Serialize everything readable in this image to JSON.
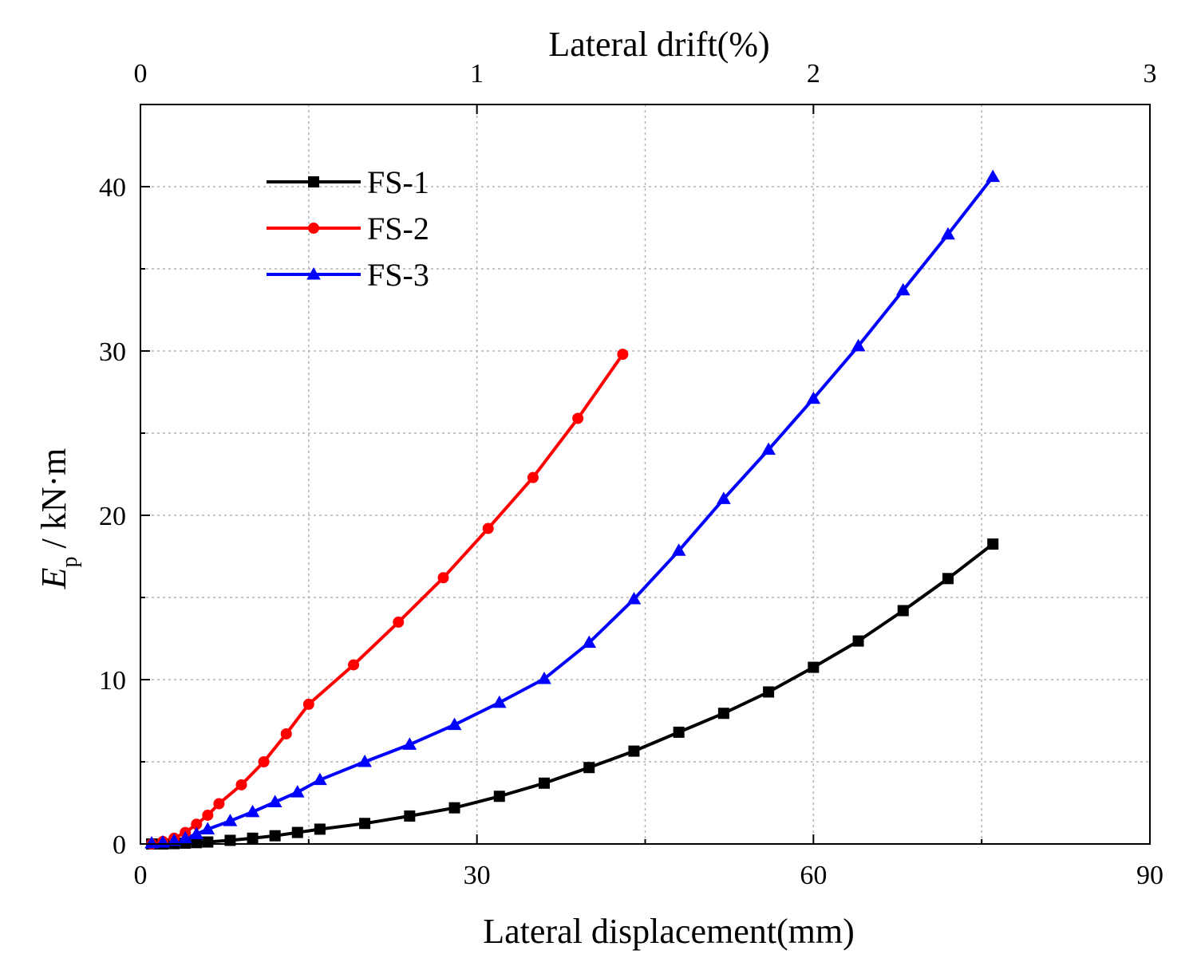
{
  "chart_data": {
    "type": "line",
    "xlabel": "Lateral displacement(mm)",
    "x2label": "Lateral drift(%)",
    "ylabel_main": "E",
    "ylabel_sub": "p",
    "ylabel_unit": "/ kN·m",
    "xlim": [
      0,
      90
    ],
    "ylim": [
      0,
      45
    ],
    "x2lim": [
      0,
      3
    ],
    "xticks": [
      0,
      30,
      60,
      90
    ],
    "x2ticks": [
      0,
      1,
      2,
      3
    ],
    "yticks": [
      0,
      10,
      20,
      30,
      40
    ],
    "xticks_minor": [
      15,
      45,
      75
    ],
    "yticks_minor": [
      5,
      15,
      25,
      35
    ],
    "grid": true,
    "legend_position": "top-left",
    "series": [
      {
        "name": "FS-1",
        "color": "#000000",
        "marker": "square",
        "x": [
          1,
          2,
          3,
          4,
          5,
          6,
          8,
          10,
          12,
          14,
          16,
          20,
          24,
          28,
          32,
          36,
          40,
          44,
          48,
          52,
          56,
          60,
          64,
          68,
          72,
          76
        ],
        "y": [
          0,
          0,
          0.02,
          0.05,
          0.08,
          0.12,
          0.22,
          0.35,
          0.5,
          0.7,
          0.9,
          1.25,
          1.7,
          2.2,
          2.9,
          3.7,
          4.65,
          5.65,
          6.8,
          7.95,
          9.25,
          10.75,
          12.35,
          14.2,
          16.15,
          18.25
        ]
      },
      {
        "name": "FS-2",
        "color": "#ff0000",
        "marker": "circle",
        "x": [
          1,
          2,
          3,
          4,
          5,
          6,
          7,
          9,
          11,
          13,
          15,
          19,
          23,
          27,
          31,
          35,
          39,
          43
        ],
        "y": [
          0,
          0.15,
          0.35,
          0.7,
          1.2,
          1.75,
          2.45,
          3.6,
          5.0,
          6.7,
          8.5,
          10.9,
          13.5,
          16.2,
          19.2,
          22.3,
          25.9,
          29.8
        ]
      },
      {
        "name": "FS-3",
        "color": "#0000ff",
        "marker": "triangle",
        "x": [
          1,
          2,
          3,
          4,
          5,
          6,
          8,
          10,
          12,
          14,
          16,
          20,
          24,
          28,
          32,
          36,
          40,
          44,
          48,
          52,
          56,
          60,
          64,
          68,
          72,
          76
        ],
        "y": [
          0.05,
          0.1,
          0.2,
          0.35,
          0.6,
          0.9,
          1.4,
          1.95,
          2.55,
          3.15,
          3.9,
          5.0,
          6.05,
          7.25,
          8.6,
          10.05,
          12.25,
          14.9,
          17.85,
          21.0,
          24.0,
          27.1,
          30.3,
          33.7,
          37.1,
          40.6
        ]
      }
    ]
  }
}
